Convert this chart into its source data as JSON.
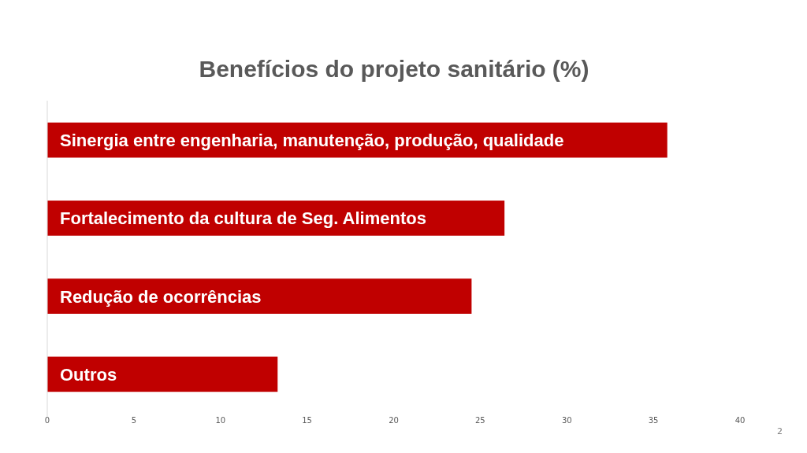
{
  "chart_data": {
    "type": "bar",
    "orientation": "horizontal",
    "title": "Benefícios do projeto sanitário (%)",
    "categories": [
      "Sinergia entre engenharia, manutenção, produção, qualidade",
      "Fortalecimento da cultura de Seg. Alimentos",
      "Redução de ocorrências",
      "Outros"
    ],
    "values": [
      35.8,
      26.4,
      24.5,
      13.3
    ],
    "color": "#c00000",
    "xlim": [
      0,
      40
    ],
    "xticks": [
      0,
      5,
      10,
      15,
      20,
      25,
      30,
      35,
      40
    ],
    "grid": false,
    "annotations": [
      "2"
    ]
  }
}
